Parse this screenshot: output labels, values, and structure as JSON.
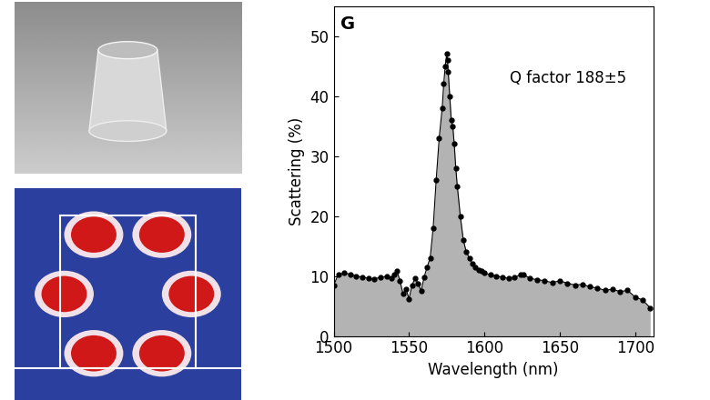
{
  "chart_data": {
    "type": "area",
    "y_label": "Scattering (%)",
    "x_label": "Wavelength (nm)",
    "annotations": [
      "G",
      "Q factor 188±5"
    ],
    "xlim": [
      1500,
      1712
    ],
    "xticks": [
      1500,
      1550,
      1600,
      1650,
      1700
    ],
    "ylim": [
      0,
      55
    ],
    "yticks": [
      0,
      10,
      20,
      30,
      40,
      50
    ],
    "grid": false,
    "series": [
      {
        "name": "Scattering",
        "color": "#000000",
        "marker": "o",
        "line_style": "solid",
        "x": [
          1500,
          1503,
          1507,
          1511,
          1515,
          1519,
          1523,
          1527,
          1531,
          1535,
          1538,
          1540,
          1542,
          1544,
          1546,
          1548,
          1550,
          1552,
          1554,
          1556,
          1558,
          1560,
          1562,
          1564,
          1566,
          1568,
          1570,
          1572,
          1573,
          1574,
          1575,
          1575.5,
          1576,
          1577,
          1578,
          1579,
          1580,
          1581,
          1582,
          1584,
          1586,
          1588,
          1590,
          1592,
          1594,
          1596,
          1598,
          1600,
          1604,
          1608,
          1612,
          1616,
          1620,
          1624,
          1626,
          1630,
          1635,
          1640,
          1645,
          1650,
          1655,
          1660,
          1665,
          1670,
          1675,
          1680,
          1685,
          1690,
          1695,
          1700,
          1705,
          1710
        ],
        "values": [
          8.5,
          10.2,
          10.5,
          10.3,
          10.0,
          9.8,
          9.6,
          9.5,
          9.8,
          9.9,
          9.6,
          10.3,
          10.8,
          9.2,
          7.0,
          7.8,
          6.2,
          8.5,
          9.6,
          8.8,
          7.5,
          9.8,
          11.5,
          13.0,
          18,
          26,
          33,
          38,
          42,
          45,
          47,
          46,
          44,
          40,
          36,
          35,
          32,
          28,
          25,
          20,
          16,
          14,
          13,
          12,
          11.5,
          11,
          10.8,
          10.5,
          10.2,
          10.0,
          9.8,
          9.6,
          9.8,
          10.2,
          10.3,
          9.6,
          9.4,
          9.2,
          8.9,
          9.2,
          8.8,
          8.5,
          8.6,
          8.2,
          8.0,
          7.6,
          7.8,
          7.4,
          7.6,
          6.5,
          6.0,
          4.7
        ]
      }
    ]
  }
}
